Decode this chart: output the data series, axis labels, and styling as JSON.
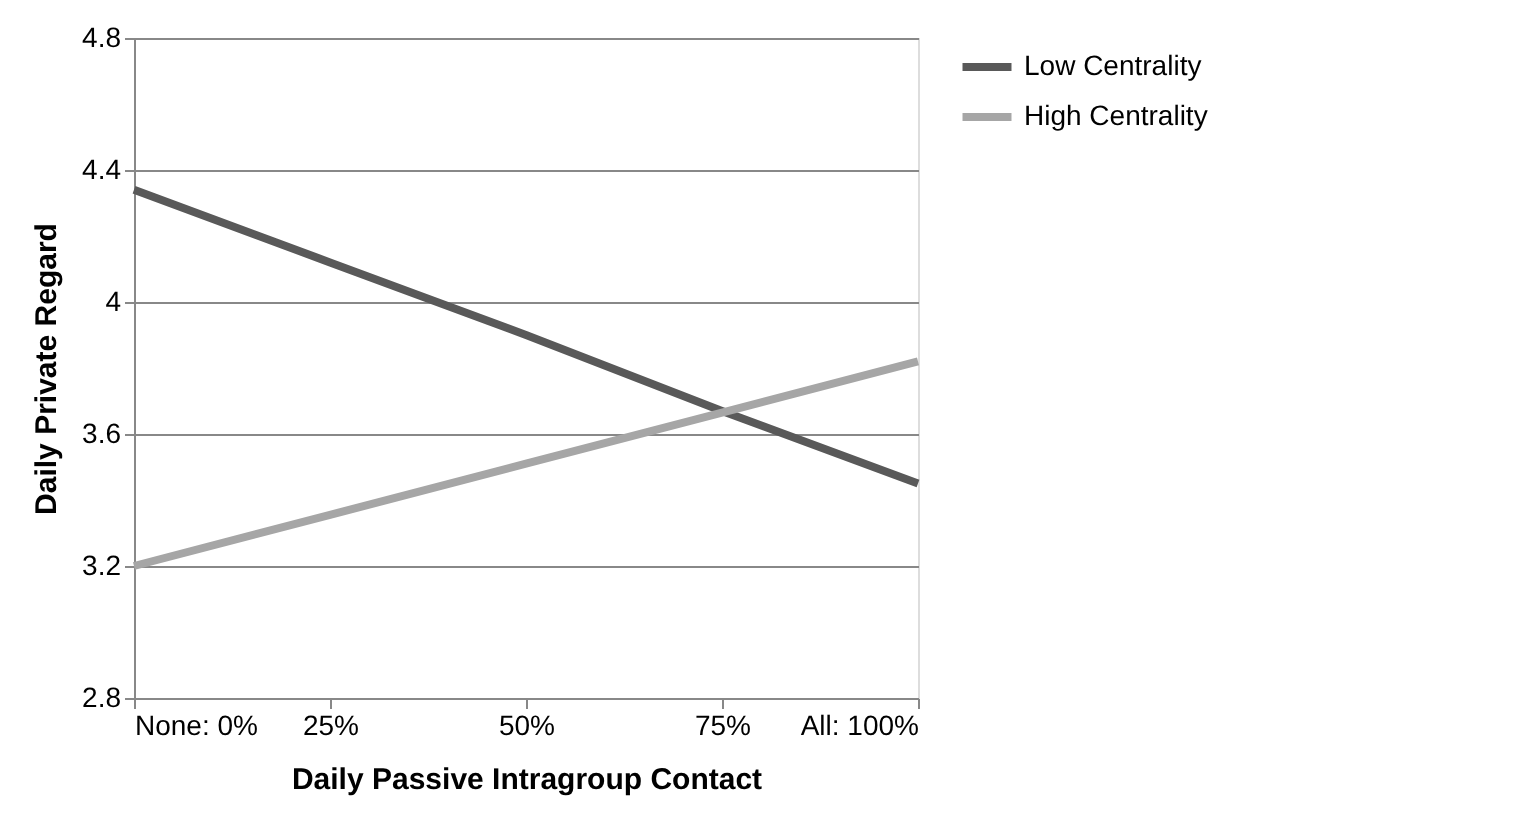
{
  "chart_data": {
    "type": "line",
    "xlabel": "Daily Passive Intragroup Contact",
    "ylabel": "Daily Private Regard",
    "categories": [
      "None: 0%",
      "25%",
      "50%",
      "75%",
      "All: 100%"
    ],
    "series": [
      {
        "name": "Low Centrality",
        "color": "#595959",
        "values": [
          4.34,
          4.12,
          3.9,
          3.67,
          3.45
        ]
      },
      {
        "name": "High Centrality",
        "color": "#a6a6a6",
        "values": [
          3.2,
          3.355,
          3.51,
          3.665,
          3.82
        ]
      }
    ],
    "ylim": [
      2.8,
      4.8
    ],
    "yticks": [
      2.8,
      3.2,
      3.6,
      4,
      4.4,
      4.8
    ],
    "grid": "y",
    "legend": "right",
    "marker": "none",
    "line_style": "solid"
  }
}
